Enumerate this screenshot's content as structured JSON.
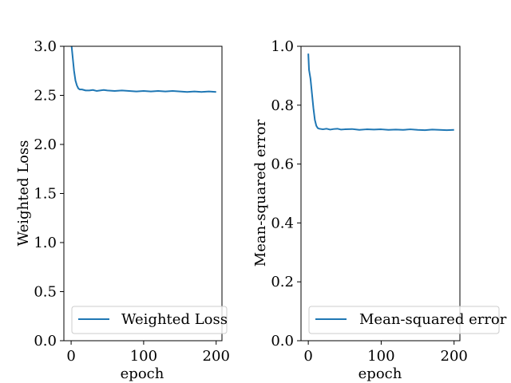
{
  "colors": {
    "line": "#1f77b4",
    "axes": "#000000",
    "background": "#ffffff",
    "legend_border": "#cccccc"
  },
  "chart_data": [
    {
      "type": "line",
      "title": "",
      "xlabel": "epoch",
      "ylabel": "Weighted Loss",
      "xlim": [
        -10,
        208
      ],
      "ylim": [
        0.0,
        3.0
      ],
      "xticks": [
        0,
        100,
        200
      ],
      "xtick_labels": [
        "0",
        "100",
        "200"
      ],
      "yticks": [
        0.0,
        0.5,
        1.0,
        1.5,
        2.0,
        2.5,
        3.0
      ],
      "ytick_labels": [
        "0.0",
        "0.5",
        "1.0",
        "1.5",
        "2.0",
        "2.5",
        "3.0"
      ],
      "grid": false,
      "legend_position": "lower-right",
      "series": [
        {
          "name": "Weighted Loss",
          "x": [
            0,
            2,
            4,
            6,
            8,
            10,
            12,
            15,
            20,
            25,
            30,
            35,
            40,
            45,
            50,
            60,
            70,
            80,
            90,
            100,
            110,
            120,
            130,
            140,
            150,
            160,
            170,
            180,
            190,
            200
          ],
          "y": [
            3.05,
            2.9,
            2.75,
            2.65,
            2.6,
            2.57,
            2.56,
            2.56,
            2.55,
            2.55,
            2.555,
            2.545,
            2.55,
            2.555,
            2.55,
            2.545,
            2.55,
            2.545,
            2.54,
            2.545,
            2.54,
            2.545,
            2.54,
            2.545,
            2.54,
            2.535,
            2.54,
            2.535,
            2.54,
            2.535
          ]
        }
      ]
    },
    {
      "type": "line",
      "title": "",
      "xlabel": "epoch",
      "ylabel": "Mean-squared error",
      "xlim": [
        -10,
        208
      ],
      "ylim": [
        0.0,
        1.0
      ],
      "xticks": [
        0,
        100,
        200
      ],
      "xtick_labels": [
        "0",
        "100",
        "200"
      ],
      "yticks": [
        0.0,
        0.2,
        0.4,
        0.6,
        0.8,
        1.0
      ],
      "ytick_labels": [
        "0.0",
        "0.2",
        "0.4",
        "0.6",
        "0.8",
        "1.0"
      ],
      "grid": false,
      "legend_position": "lower-right",
      "series": [
        {
          "name": "Mean-squared error",
          "x": [
            0,
            1,
            3,
            5,
            7,
            9,
            11,
            13,
            15,
            20,
            25,
            30,
            35,
            40,
            45,
            50,
            60,
            70,
            80,
            90,
            100,
            110,
            120,
            130,
            140,
            150,
            160,
            170,
            180,
            190,
            200
          ],
          "y": [
            0.975,
            0.92,
            0.89,
            0.84,
            0.79,
            0.75,
            0.73,
            0.722,
            0.72,
            0.718,
            0.72,
            0.717,
            0.719,
            0.72,
            0.717,
            0.718,
            0.719,
            0.716,
            0.718,
            0.717,
            0.718,
            0.716,
            0.717,
            0.716,
            0.718,
            0.716,
            0.715,
            0.717,
            0.716,
            0.715,
            0.716
          ]
        }
      ]
    }
  ]
}
